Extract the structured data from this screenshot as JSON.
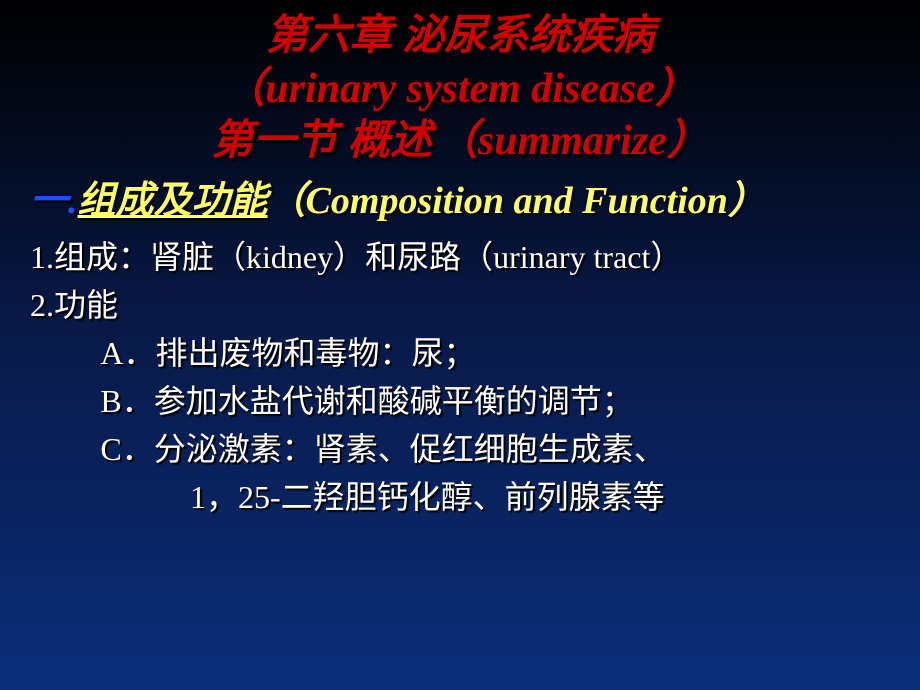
{
  "title": {
    "line1_cn": "第六章  泌尿系统疾病",
    "line2_en_open": "（",
    "line2_en": "urinary system disease",
    "line2_en_close": "）",
    "line3_cn": "第一节  概述",
    "line3_en_open": "（",
    "line3_en": "summarize",
    "line3_en_close": "）"
  },
  "section": {
    "prefix": "一.",
    "heading_cn": "组成及功能",
    "heading_en_open": "（",
    "heading_en": "Composition and Function",
    "heading_en_close": "）"
  },
  "body": {
    "p1_a": "1.组成：肾脏（",
    "p1_b": "kidney",
    "p1_c": "）和尿路（",
    "p1_d": "urinary tract",
    "p1_e": "）",
    "p2": "2.功能",
    "p3": "A．排出废物和毒物：尿；",
    "p4": "B．参加水盐代谢和酸碱平衡的调节；",
    "p5": "C．分泌激素：肾素、促红细胞生成素、",
    "p6": "1，25-二羟胆钙化醇、前列腺素等"
  },
  "colors": {
    "bg_top": "#000000",
    "bg_mid": "#081845",
    "bg_bottom": "#0b2e7a",
    "title_red": "#d00000",
    "blue": "#1d4fff",
    "yellow": "#ffff66",
    "white": "#ffffff"
  }
}
